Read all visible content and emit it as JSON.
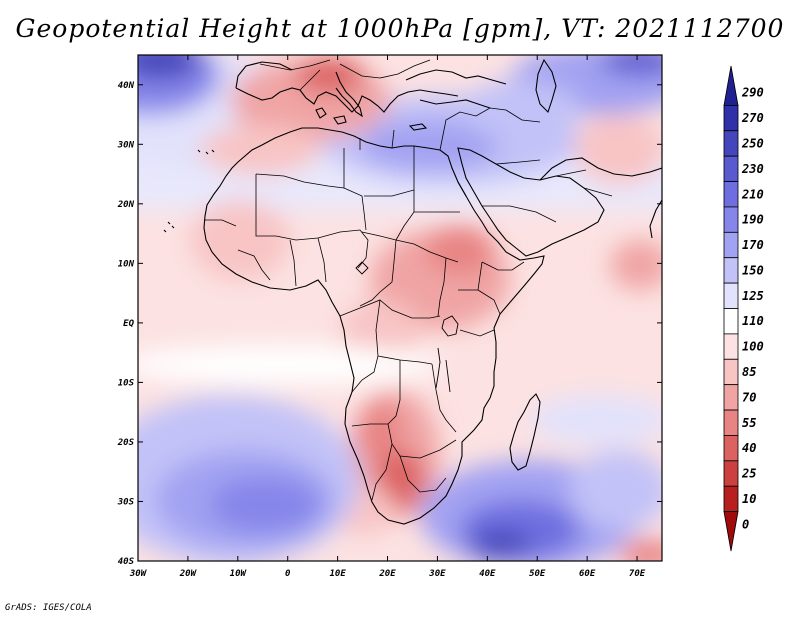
{
  "title": "Geopotential Height at 1000hPa [gpm], VT: 2021112700",
  "footer": "GrADS: IGES/COLA",
  "map": {
    "lon_range": [
      -30,
      75
    ],
    "lat_range": [
      -40,
      45
    ],
    "lon_ticks": [
      {
        "lon": -30,
        "label": "30W"
      },
      {
        "lon": -20,
        "label": "20W"
      },
      {
        "lon": -10,
        "label": "10W"
      },
      {
        "lon": 0,
        "label": "0"
      },
      {
        "lon": 10,
        "label": "10E"
      },
      {
        "lon": 20,
        "label": "20E"
      },
      {
        "lon": 30,
        "label": "30E"
      },
      {
        "lon": 40,
        "label": "40E"
      },
      {
        "lon": 50,
        "label": "50E"
      },
      {
        "lon": 60,
        "label": "60E"
      },
      {
        "lon": 70,
        "label": "70E"
      }
    ],
    "lat_ticks": [
      {
        "lat": 40,
        "label": "40N"
      },
      {
        "lat": 30,
        "label": "30N"
      },
      {
        "lat": 20,
        "label": "20N"
      },
      {
        "lat": 10,
        "label": "10N"
      },
      {
        "lat": 0,
        "label": "EQ"
      },
      {
        "lat": -10,
        "label": "10S"
      },
      {
        "lat": -20,
        "label": "20S"
      },
      {
        "lat": -30,
        "label": "30S"
      },
      {
        "lat": -40,
        "label": "40S"
      }
    ]
  },
  "colorbar": {
    "labels": [
      "290",
      "270",
      "250",
      "230",
      "210",
      "190",
      "170",
      "150",
      "125",
      "110",
      "100",
      "85",
      "70",
      "55",
      "40",
      "25",
      "10",
      "0"
    ],
    "colors": [
      "#202090",
      "#3030a8",
      "#4646bc",
      "#5a5ad0",
      "#6e6ee0",
      "#8686ea",
      "#a2a2f2",
      "#c2c2f8",
      "#e2e2fc",
      "#ffffff",
      "#fce2e2",
      "#f8c4c4",
      "#f0a4a4",
      "#e88484",
      "#dc6262",
      "#cc4040",
      "#b82020",
      "#a00a0a"
    ]
  },
  "colors": {
    "land_outline": "#000000",
    "background": "#ffffff"
  }
}
